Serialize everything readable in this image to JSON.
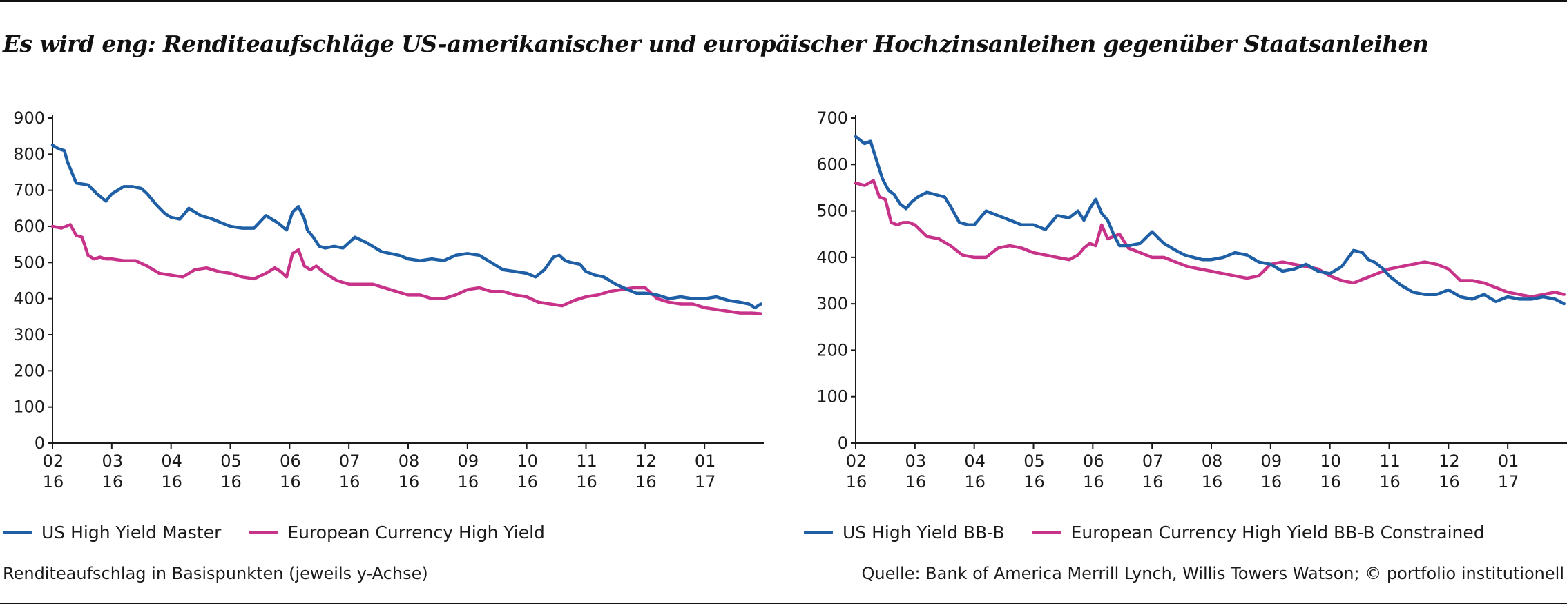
{
  "title": "Es wird eng: Renditeaufschläge US-amerikanischer und europäischer Hochzinsanleihen gegenüber Staatsanleihen",
  "footnote": "Renditeaufschlag in Basispunkten (jeweils y-Achse)",
  "source": "Quelle: Bank of America Merrill Lynch, Willis Towers Watson; © portfolio institutionell",
  "colors": {
    "us": "#1f5fa6",
    "eu": "#c8338a",
    "axis": "#1a1a1a"
  },
  "chart_data": [
    {
      "type": "line",
      "x_ticks": [
        {
          "top": "02",
          "bottom": "16"
        },
        {
          "top": "03",
          "bottom": "16"
        },
        {
          "top": "04",
          "bottom": "16"
        },
        {
          "top": "05",
          "bottom": "16"
        },
        {
          "top": "06",
          "bottom": "16"
        },
        {
          "top": "07",
          "bottom": "16"
        },
        {
          "top": "08",
          "bottom": "16"
        },
        {
          "top": "09",
          "bottom": "16"
        },
        {
          "top": "10",
          "bottom": "16"
        },
        {
          "top": "11",
          "bottom": "16"
        },
        {
          "top": "12",
          "bottom": "16"
        },
        {
          "top": "01",
          "bottom": "17"
        }
      ],
      "xlim": [
        0,
        12
      ],
      "ylim": [
        0,
        900
      ],
      "y_ticks": [
        0,
        100,
        200,
        300,
        400,
        500,
        600,
        700,
        800,
        900
      ],
      "series": [
        {
          "name": "US High Yield Master",
          "color": "#1f5fa6",
          "x": [
            0,
            0.1,
            0.2,
            0.25,
            0.4,
            0.6,
            0.75,
            0.9,
            1.0,
            1.1,
            1.2,
            1.35,
            1.5,
            1.6,
            1.75,
            1.9,
            2.0,
            2.15,
            2.3,
            2.5,
            2.7,
            2.85,
            3.0,
            3.2,
            3.4,
            3.6,
            3.8,
            3.95,
            4.05,
            4.15,
            4.25,
            4.3,
            4.4,
            4.5,
            4.6,
            4.75,
            4.9,
            5.1,
            5.3,
            5.45,
            5.55,
            5.7,
            5.85,
            6.0,
            6.2,
            6.4,
            6.6,
            6.8,
            7.0,
            7.2,
            7.4,
            7.6,
            7.8,
            8.0,
            8.15,
            8.3,
            8.45,
            8.55,
            8.65,
            8.75,
            8.9,
            9.0,
            9.15,
            9.3,
            9.5,
            9.7,
            9.85,
            10.0,
            10.2,
            10.4,
            10.6,
            10.8,
            11.0,
            11.2,
            11.4,
            11.6,
            11.75,
            11.85,
            11.95
          ],
          "values": [
            825,
            815,
            810,
            780,
            720,
            715,
            690,
            670,
            690,
            700,
            710,
            710,
            705,
            690,
            660,
            635,
            625,
            620,
            650,
            630,
            620,
            610,
            600,
            595,
            595,
            630,
            610,
            590,
            640,
            655,
            620,
            590,
            570,
            545,
            540,
            545,
            540,
            570,
            555,
            540,
            530,
            525,
            520,
            510,
            505,
            510,
            505,
            520,
            525,
            520,
            500,
            480,
            475,
            470,
            460,
            480,
            515,
            520,
            505,
            500,
            495,
            475,
            465,
            460,
            440,
            425,
            415,
            415,
            410,
            400,
            405,
            400,
            400,
            405,
            395,
            390,
            385,
            375,
            385
          ]
        },
        {
          "name": "European Currency High Yield",
          "color": "#c8338a",
          "x": [
            0,
            0.15,
            0.3,
            0.4,
            0.5,
            0.6,
            0.7,
            0.8,
            0.9,
            1.0,
            1.2,
            1.4,
            1.6,
            1.8,
            2.0,
            2.2,
            2.4,
            2.6,
            2.8,
            3.0,
            3.2,
            3.4,
            3.6,
            3.75,
            3.85,
            3.95,
            4.05,
            4.15,
            4.25,
            4.35,
            4.45,
            4.6,
            4.8,
            5.0,
            5.2,
            5.4,
            5.6,
            5.8,
            6.0,
            6.2,
            6.4,
            6.6,
            6.8,
            7.0,
            7.2,
            7.4,
            7.6,
            7.8,
            8.0,
            8.2,
            8.4,
            8.6,
            8.8,
            9.0,
            9.2,
            9.4,
            9.6,
            9.8,
            10.0,
            10.2,
            10.4,
            10.6,
            10.8,
            11.0,
            11.2,
            11.4,
            11.6,
            11.8,
            11.95
          ],
          "values": [
            600,
            595,
            605,
            575,
            570,
            520,
            510,
            515,
            510,
            510,
            505,
            505,
            490,
            470,
            465,
            460,
            480,
            485,
            475,
            470,
            460,
            455,
            470,
            485,
            475,
            460,
            525,
            535,
            490,
            480,
            490,
            470,
            450,
            440,
            440,
            440,
            430,
            420,
            410,
            410,
            400,
            400,
            410,
            425,
            430,
            420,
            420,
            410,
            405,
            390,
            385,
            380,
            395,
            405,
            410,
            420,
            425,
            430,
            430,
            400,
            390,
            385,
            385,
            375,
            370,
            365,
            360,
            360,
            358
          ]
        }
      ]
    },
    {
      "type": "line",
      "x_ticks": [
        {
          "top": "02",
          "bottom": "16"
        },
        {
          "top": "03",
          "bottom": "16"
        },
        {
          "top": "04",
          "bottom": "16"
        },
        {
          "top": "05",
          "bottom": "16"
        },
        {
          "top": "06",
          "bottom": "16"
        },
        {
          "top": "07",
          "bottom": "16"
        },
        {
          "top": "08",
          "bottom": "16"
        },
        {
          "top": "09",
          "bottom": "16"
        },
        {
          "top": "10",
          "bottom": "16"
        },
        {
          "top": "11",
          "bottom": "16"
        },
        {
          "top": "12",
          "bottom": "16"
        },
        {
          "top": "01",
          "bottom": "17"
        }
      ],
      "xlim": [
        0,
        12
      ],
      "ylim": [
        0,
        700
      ],
      "y_ticks": [
        0,
        100,
        200,
        300,
        400,
        500,
        600,
        700
      ],
      "series": [
        {
          "name": "US High Yield BB-B",
          "color": "#1f5fa6",
          "x": [
            0,
            0.15,
            0.25,
            0.35,
            0.45,
            0.55,
            0.65,
            0.75,
            0.85,
            0.95,
            1.05,
            1.2,
            1.35,
            1.5,
            1.6,
            1.75,
            1.9,
            2.0,
            2.2,
            2.4,
            2.6,
            2.8,
            3.0,
            3.2,
            3.4,
            3.6,
            3.75,
            3.85,
            3.95,
            4.05,
            4.15,
            4.25,
            4.35,
            4.45,
            4.6,
            4.8,
            5.0,
            5.2,
            5.4,
            5.55,
            5.7,
            5.85,
            6.0,
            6.2,
            6.4,
            6.6,
            6.8,
            7.0,
            7.2,
            7.4,
            7.6,
            7.8,
            8.0,
            8.2,
            8.4,
            8.55,
            8.65,
            8.75,
            8.9,
            9.0,
            9.2,
            9.4,
            9.6,
            9.8,
            10.0,
            10.2,
            10.4,
            10.6,
            10.8,
            11.0,
            11.2,
            11.4,
            11.6,
            11.8,
            11.95
          ],
          "values": [
            660,
            645,
            650,
            610,
            570,
            545,
            535,
            515,
            505,
            520,
            530,
            540,
            535,
            530,
            510,
            475,
            470,
            470,
            500,
            490,
            480,
            470,
            470,
            460,
            490,
            485,
            500,
            480,
            505,
            525,
            495,
            480,
            450,
            425,
            425,
            430,
            455,
            430,
            415,
            405,
            400,
            395,
            395,
            400,
            410,
            405,
            390,
            385,
            370,
            375,
            385,
            370,
            365,
            380,
            415,
            410,
            395,
            390,
            375,
            360,
            340,
            325,
            320,
            320,
            330,
            315,
            310,
            320,
            305,
            315,
            310,
            310,
            315,
            310,
            300
          ]
        },
        {
          "name": "European Currency High Yield BB-B Constrained",
          "color": "#c8338a",
          "x": [
            0,
            0.15,
            0.3,
            0.4,
            0.5,
            0.6,
            0.7,
            0.8,
            0.9,
            1.0,
            1.2,
            1.4,
            1.6,
            1.8,
            2.0,
            2.2,
            2.4,
            2.6,
            2.8,
            3.0,
            3.2,
            3.4,
            3.6,
            3.75,
            3.85,
            3.95,
            4.05,
            4.15,
            4.25,
            4.35,
            4.45,
            4.6,
            4.8,
            5.0,
            5.2,
            5.4,
            5.6,
            5.8,
            6.0,
            6.2,
            6.4,
            6.6,
            6.8,
            7.0,
            7.2,
            7.4,
            7.6,
            7.8,
            8.0,
            8.2,
            8.4,
            8.6,
            8.8,
            9.0,
            9.2,
            9.4,
            9.6,
            9.8,
            10.0,
            10.2,
            10.4,
            10.6,
            10.8,
            11.0,
            11.2,
            11.4,
            11.6,
            11.8,
            11.95
          ],
          "values": [
            560,
            555,
            565,
            530,
            525,
            475,
            470,
            475,
            475,
            470,
            445,
            440,
            425,
            405,
            400,
            400,
            420,
            425,
            420,
            410,
            405,
            400,
            395,
            405,
            420,
            430,
            425,
            470,
            440,
            445,
            450,
            420,
            410,
            400,
            400,
            390,
            380,
            375,
            370,
            365,
            360,
            355,
            360,
            385,
            390,
            385,
            380,
            375,
            360,
            350,
            345,
            355,
            365,
            375,
            380,
            385,
            390,
            385,
            375,
            350,
            350,
            345,
            335,
            325,
            320,
            315,
            320,
            325,
            320
          ]
        }
      ]
    }
  ]
}
